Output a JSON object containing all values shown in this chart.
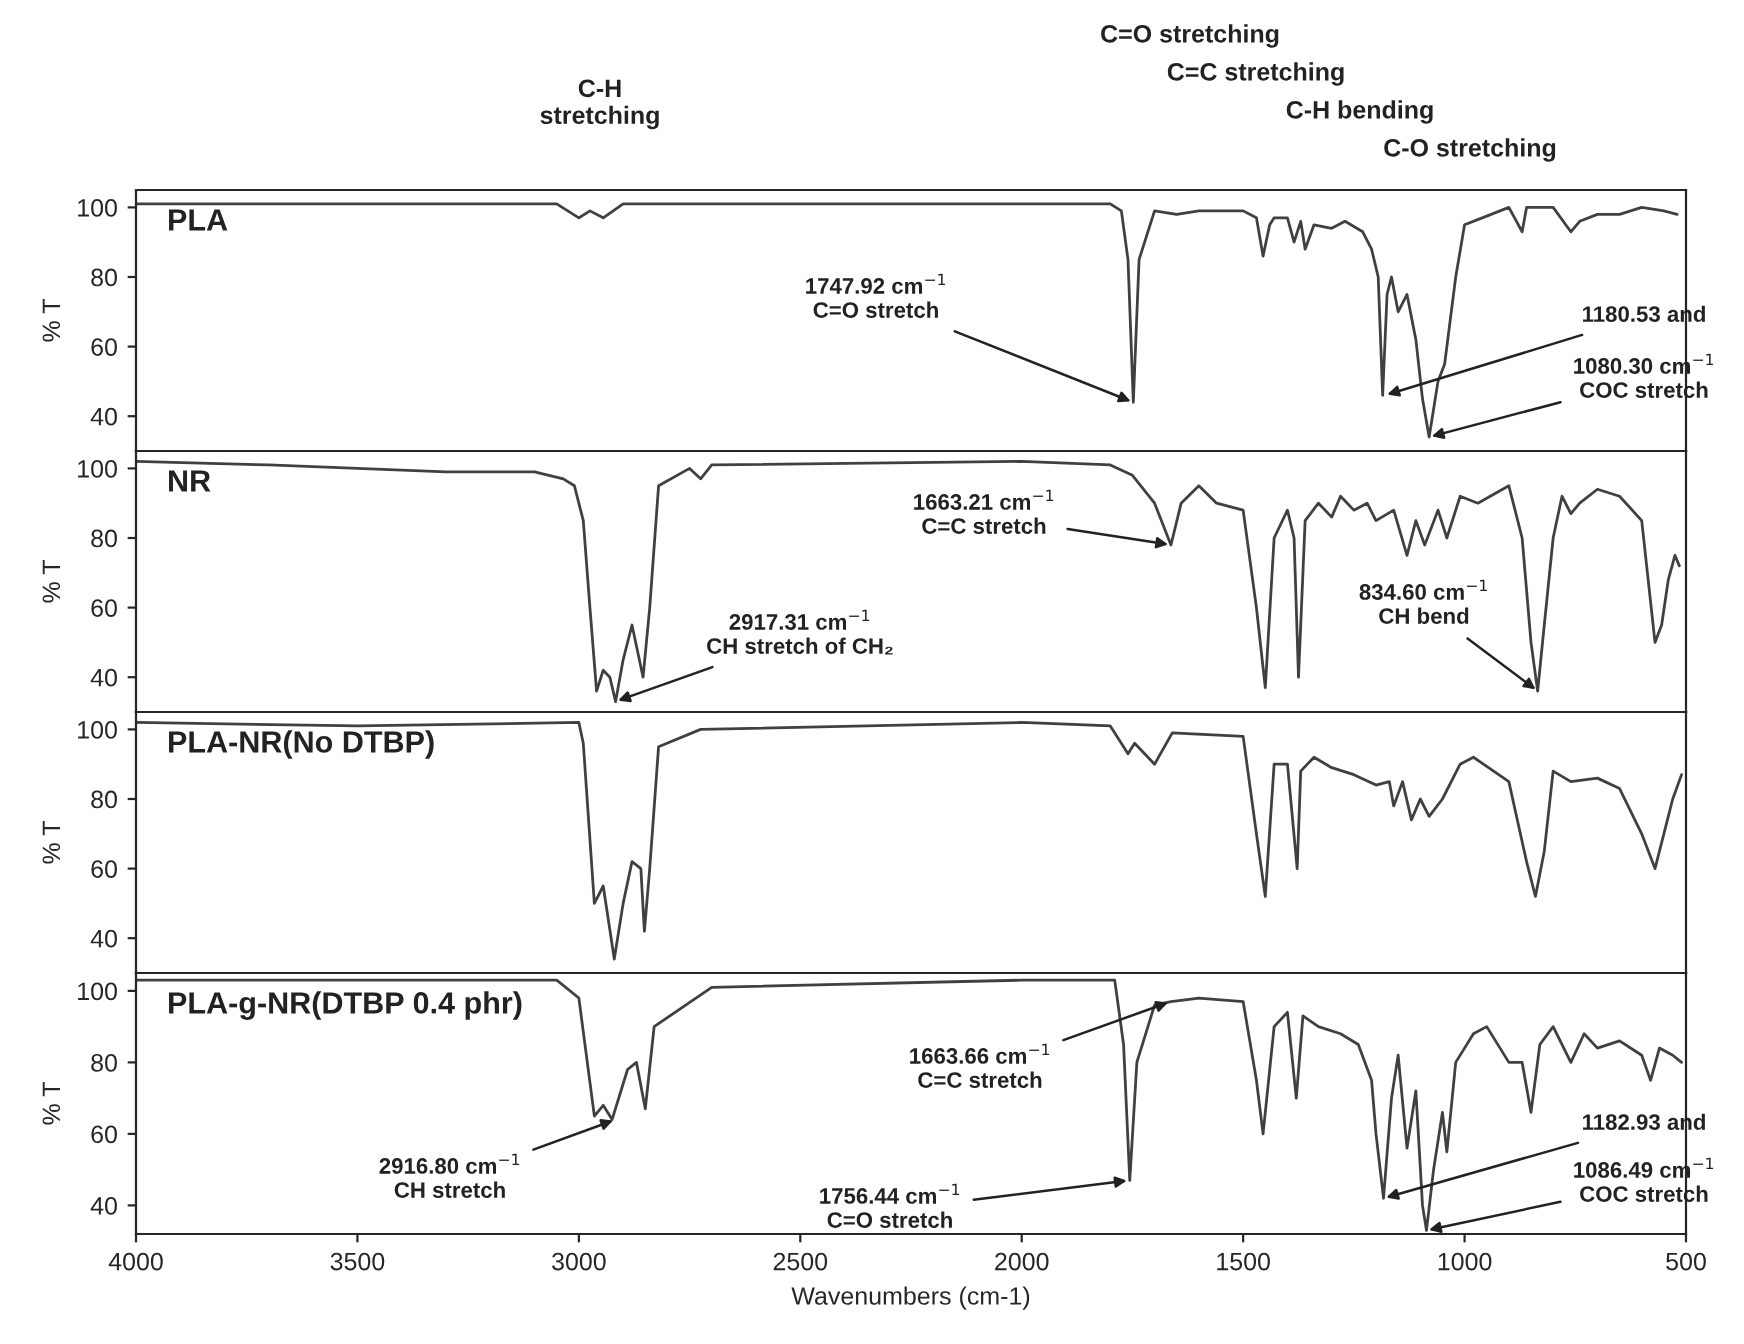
{
  "chart_data": [
    {
      "type": "line",
      "ylabel": "% T",
      "xlim": [
        4000,
        500
      ],
      "xticks": [
        4000,
        3500,
        3000,
        2500,
        2000,
        1500,
        1000,
        500
      ],
      "ylim": [
        30,
        105
      ],
      "yticks": [
        40,
        60,
        80,
        100
      ],
      "tick_labels": "y",
      "annotations": [
        "C-H\nstretching",
        "C=O stretching",
        "C=C stretching",
        "C-H bending",
        "C-O stretching",
        {
          "text": "1747.92 cm$^{−1}$\nC=O stretch",
          "x": 1747.92,
          "y": 44
        },
        {
          "text": "1180.53 and",
          "x": 1180.53,
          "y": 46
        },
        {
          "text": "1080.30 cm$^{−1}$\nCOC stretch",
          "x": 1080.3,
          "y": 34
        }
      ],
      "x": [
        4000,
        3500,
        3050,
        3000,
        2975,
        2945,
        2900,
        2500,
        1800,
        1775,
        1760,
        1748,
        1735,
        1700,
        1650,
        1600,
        1500,
        1470,
        1455,
        1440,
        1430,
        1400,
        1385,
        1370,
        1360,
        1340,
        1300,
        1270,
        1230,
        1210,
        1195,
        1185,
        1175,
        1165,
        1150,
        1130,
        1110,
        1095,
        1080,
        1070,
        1060,
        1045,
        1020,
        1000,
        960,
        900,
        870,
        860,
        800,
        760,
        740,
        700,
        650,
        600,
        550,
        520
      ],
      "series": [
        {
          "name": "PLA",
          "color": "#404040",
          "values": [
            101,
            101,
            101,
            97,
            99,
            97,
            101,
            101,
            101,
            99,
            85,
            44,
            85,
            99,
            98,
            99,
            99,
            97,
            86,
            95,
            97,
            97,
            90,
            96,
            88,
            95,
            94,
            96,
            93,
            88,
            80,
            46,
            75,
            80,
            70,
            75,
            62,
            45,
            34,
            42,
            50,
            55,
            80,
            95,
            97,
            100,
            93,
            100,
            100,
            93,
            96,
            98,
            98,
            100,
            99,
            98
          ]
        }
      ]
    },
    {
      "type": "line",
      "ylabel": "% T",
      "xlim": [
        4000,
        500
      ],
      "xticks": [
        4000,
        3500,
        3000,
        2500,
        2000,
        1500,
        1000,
        500
      ],
      "ylim": [
        30,
        105
      ],
      "yticks": [
        40,
        60,
        80,
        100
      ],
      "tick_labels": "y",
      "annotations": [
        {
          "text": "2917.31 cm$^{−1}$\nCH stretch of CH₂",
          "x": 2917.31,
          "y": 33
        },
        {
          "text": "1663.21 cm$^{−1}$\nC=C stretch",
          "x": 1663.21,
          "y": 78
        },
        {
          "text": "834.60 cm$^{−1}$\nCH bend",
          "x": 834.6,
          "y": 36
        }
      ],
      "x": [
        4000,
        3700,
        3300,
        3100,
        3035,
        3010,
        2990,
        2975,
        2960,
        2945,
        2930,
        2917,
        2900,
        2880,
        2855,
        2840,
        2820,
        2750,
        2725,
        2700,
        2000,
        1800,
        1750,
        1700,
        1663,
        1640,
        1600,
        1560,
        1500,
        1470,
        1450,
        1430,
        1400,
        1385,
        1375,
        1360,
        1330,
        1300,
        1280,
        1250,
        1220,
        1200,
        1160,
        1130,
        1110,
        1090,
        1060,
        1040,
        1010,
        970,
        900,
        870,
        850,
        835,
        820,
        800,
        780,
        760,
        740,
        700,
        650,
        600,
        570,
        555,
        540,
        525,
        515
      ],
      "series": [
        {
          "name": "NR",
          "color": "#404040",
          "values": [
            102,
            101,
            99,
            99,
            97,
            95,
            85,
            60,
            36,
            42,
            40,
            33,
            45,
            55,
            40,
            60,
            95,
            100,
            97,
            101,
            102,
            101,
            98,
            90,
            78,
            90,
            95,
            90,
            88,
            60,
            37,
            80,
            88,
            80,
            40,
            85,
            90,
            86,
            92,
            88,
            90,
            85,
            88,
            75,
            85,
            78,
            88,
            80,
            92,
            90,
            95,
            80,
            50,
            36,
            55,
            80,
            92,
            87,
            90,
            94,
            92,
            85,
            50,
            55,
            68,
            75,
            72
          ]
        }
      ]
    },
    {
      "type": "line",
      "ylabel": "% T",
      "xlim": [
        4000,
        500
      ],
      "xticks": [
        4000,
        3500,
        3000,
        2500,
        2000,
        1500,
        1000,
        500
      ],
      "ylim": [
        30,
        105
      ],
      "yticks": [
        40,
        60,
        80,
        100
      ],
      "tick_labels": "y",
      "x": [
        4000,
        3500,
        3000,
        2990,
        2965,
        2945,
        2920,
        2900,
        2880,
        2860,
        2852,
        2840,
        2820,
        2725,
        2000,
        1800,
        1760,
        1745,
        1700,
        1660,
        1500,
        1470,
        1450,
        1430,
        1400,
        1378,
        1370,
        1340,
        1300,
        1250,
        1200,
        1170,
        1160,
        1140,
        1120,
        1100,
        1080,
        1050,
        1010,
        980,
        900,
        860,
        840,
        820,
        800,
        760,
        700,
        650,
        600,
        570,
        550,
        530,
        510
      ],
      "series": [
        {
          "name": "PLA-NR(No DTBP)",
          "color": "#404040",
          "values": [
            102,
            101,
            102,
            96,
            50,
            55,
            34,
            50,
            62,
            60,
            42,
            60,
            95,
            100,
            102,
            101,
            93,
            96,
            90,
            99,
            98,
            70,
            52,
            90,
            90,
            60,
            88,
            92,
            89,
            87,
            84,
            85,
            78,
            85,
            74,
            80,
            75,
            80,
            90,
            92,
            85,
            62,
            52,
            65,
            88,
            85,
            86,
            83,
            70,
            60,
            70,
            80,
            87
          ]
        }
      ]
    },
    {
      "type": "line",
      "ylabel": "% T",
      "xlabel": "Wavenumbers (cm-1)",
      "xlim": [
        4000,
        500
      ],
      "xticks": [
        4000,
        3500,
        3000,
        2500,
        2000,
        1500,
        1000,
        500
      ],
      "ylim": [
        32,
        105
      ],
      "yticks": [
        40,
        60,
        80,
        100
      ],
      "annotations": [
        {
          "text": "2916.80 cm$^{−1}$\nCH stretch",
          "x": 2916.8,
          "y": 64
        },
        {
          "text": "1663.66 cm$^{−1}$\nC=C stretch",
          "x": 1663.66,
          "y": 97
        },
        {
          "text": "1756.44 cm$^{−1}$\nC=O stretch",
          "x": 1756.44,
          "y": 47
        },
        {
          "text": "1182.93 and",
          "x": 1182.93,
          "y": 42
        },
        {
          "text": "1086.49 cm$^{−1}$\nCOC stretch",
          "x": 1086.49,
          "y": 33
        }
      ],
      "x": [
        4000,
        3050,
        3000,
        2965,
        2945,
        2925,
        2890,
        2870,
        2850,
        2830,
        2700,
        2000,
        1790,
        1770,
        1756,
        1740,
        1700,
        1663,
        1600,
        1500,
        1470,
        1455,
        1430,
        1400,
        1380,
        1365,
        1330,
        1280,
        1240,
        1210,
        1200,
        1183,
        1165,
        1150,
        1130,
        1110,
        1095,
        1086,
        1070,
        1050,
        1040,
        1020,
        980,
        950,
        900,
        870,
        850,
        830,
        800,
        760,
        730,
        700,
        650,
        600,
        580,
        560,
        530,
        510
      ],
      "series": [
        {
          "name": "PLA-g-NR(DTBP 0.4 phr)",
          "color": "#404040",
          "values": [
            103,
            103,
            98,
            65,
            68,
            64,
            78,
            80,
            67,
            90,
            101,
            103,
            103,
            85,
            47,
            80,
            96,
            97,
            98,
            97,
            75,
            60,
            90,
            94,
            70,
            93,
            90,
            88,
            85,
            75,
            60,
            42,
            70,
            82,
            56,
            72,
            40,
            33,
            50,
            66,
            55,
            80,
            88,
            90,
            80,
            80,
            66,
            85,
            90,
            80,
            88,
            84,
            86,
            82,
            75,
            84,
            82,
            80
          ]
        }
      ]
    }
  ]
}
